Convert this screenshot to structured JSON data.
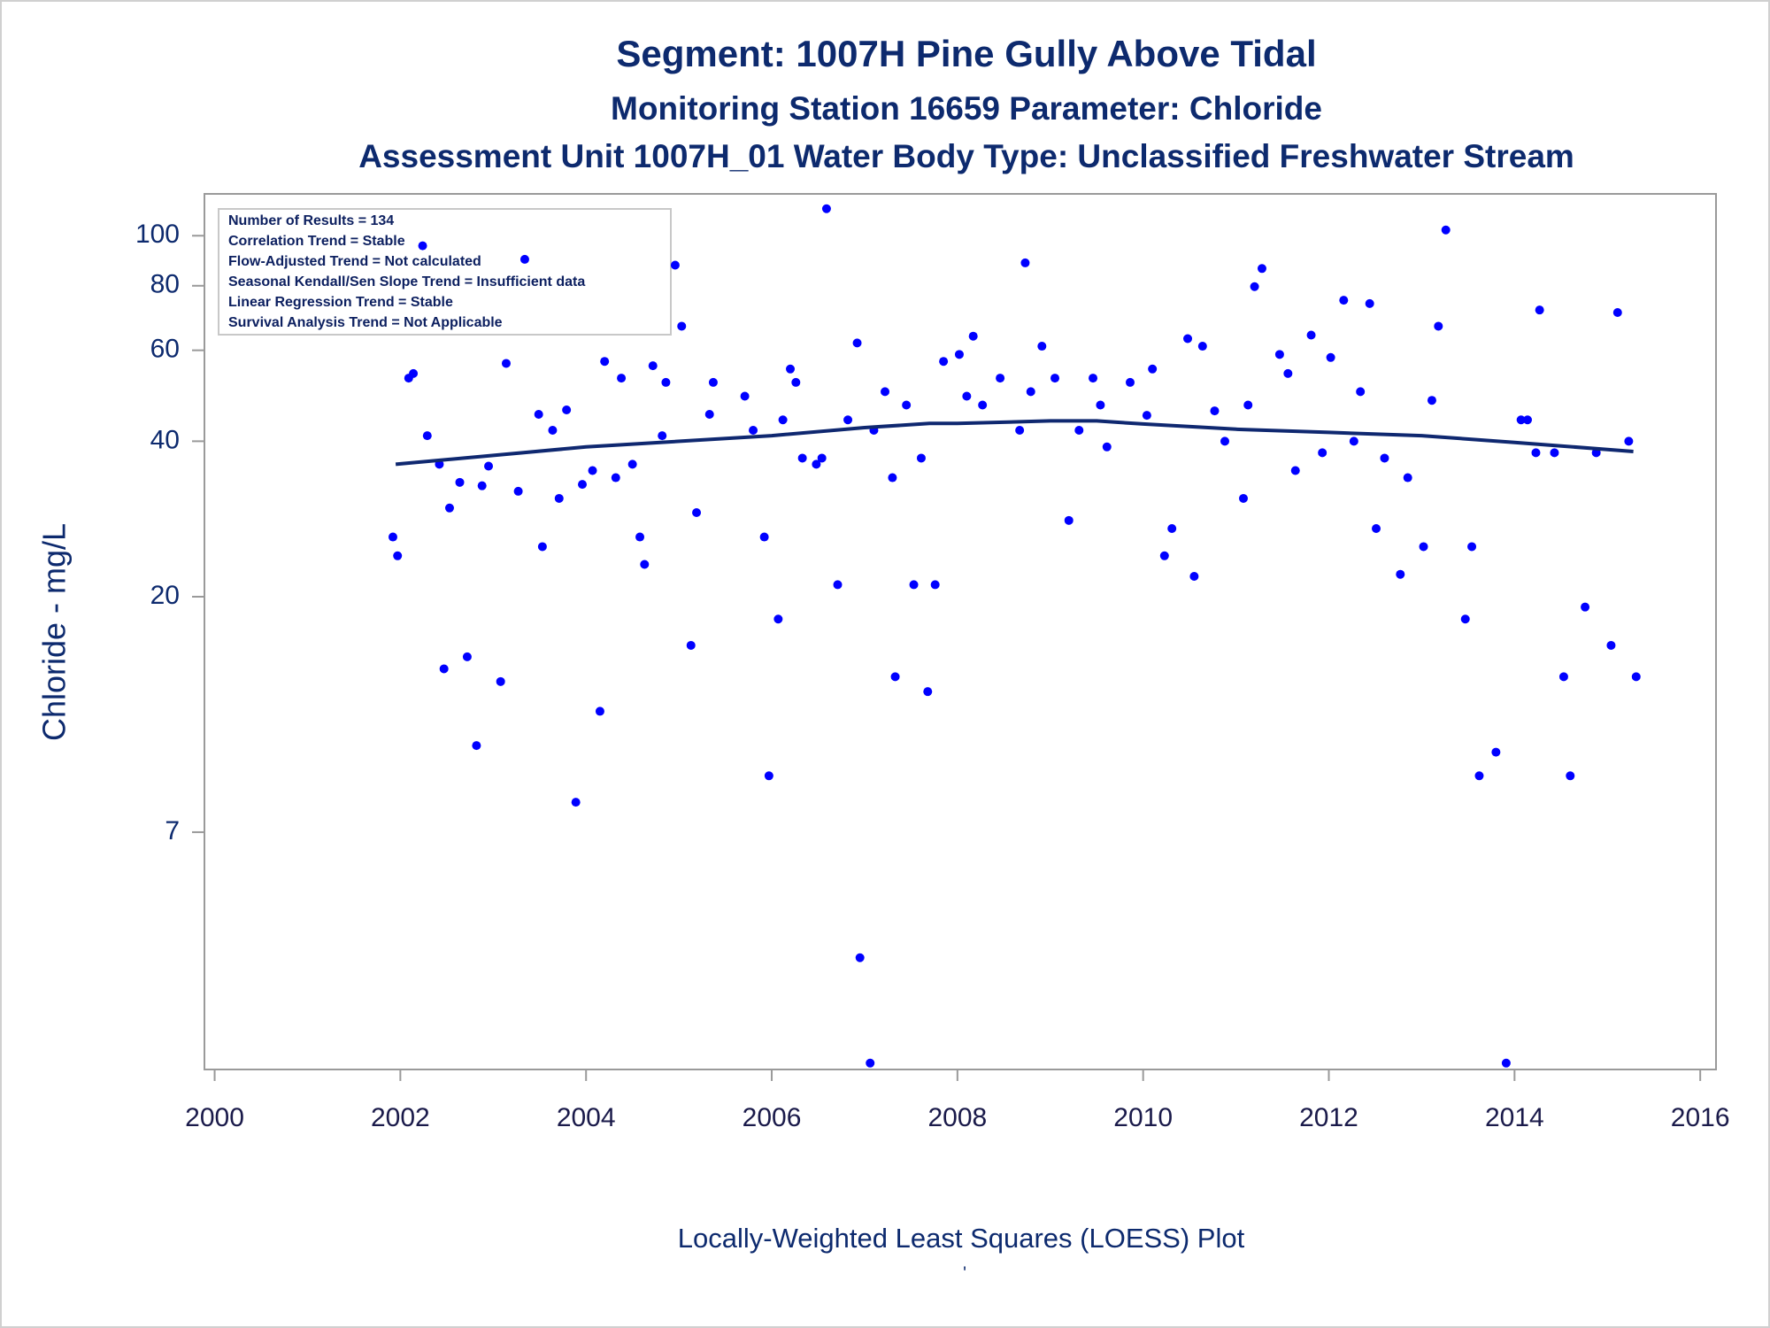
{
  "chart_data": {
    "type": "scatter",
    "title": "Segment: 1007H  Pine Gully Above Tidal",
    "subtitles": [
      "Monitoring Station 16659 Parameter: Chloride",
      "Assessment Unit 1007H_01   Water Body Type: Unclassified Freshwater Stream"
    ],
    "y_label": "Chloride - mg/L",
    "footnotes": [
      "Locally-Weighted Least Squares (LOESS) Plot",
      "'"
    ],
    "stats_box": [
      "Number of Results = 134",
      "Correlation Trend = Stable",
      "Flow-Adjusted Trend = Not calculated",
      "Seasonal Kendall/Sen Slope Trend = Insufficient data",
      "Linear Regression Trend = Stable",
      "Survival Analysis Trend = Not Applicable"
    ],
    "x": [
      2001.92,
      2001.97,
      2002.09,
      2002.14,
      2002.24,
      2002.29,
      2002.42,
      2002.47,
      2002.53,
      2002.64,
      2002.72,
      2002.82,
      2002.88,
      2002.95,
      2003.08,
      2003.14,
      2003.27,
      2003.34,
      2003.49,
      2003.53,
      2003.64,
      2003.71,
      2003.79,
      2003.89,
      2003.96,
      2004.07,
      2004.15,
      2004.2,
      2004.32,
      2004.38,
      2004.5,
      2004.58,
      2004.63,
      2004.72,
      2004.82,
      2004.86,
      2004.96,
      2005.03,
      2005.13,
      2005.19,
      2005.33,
      2005.37,
      2005.71,
      2005.8,
      2005.92,
      2005.97,
      2006.07,
      2006.12,
      2006.2,
      2006.26,
      2006.33,
      2006.48,
      2006.54,
      2006.59,
      2006.71,
      2006.82,
      2006.92,
      2006.95,
      2007.06,
      2007.1,
      2007.22,
      2007.3,
      2007.33,
      2007.45,
      2007.53,
      2007.61,
      2007.68,
      2007.76,
      2007.85,
      2008.02,
      2008.1,
      2008.17,
      2008.27,
      2008.46,
      2008.67,
      2008.73,
      2008.79,
      2008.91,
      2009.05,
      2009.2,
      2009.31,
      2009.46,
      2009.54,
      2009.61,
      2009.86,
      2010.04,
      2010.1,
      2010.23,
      2010.31,
      2010.48,
      2010.55,
      2010.64,
      2010.77,
      2010.88,
      2011.08,
      2011.13,
      2011.2,
      2011.28,
      2011.47,
      2011.56,
      2011.64,
      2011.81,
      2011.93,
      2012.02,
      2012.16,
      2012.27,
      2012.34,
      2012.44,
      2012.51,
      2012.6,
      2012.77,
      2012.85,
      2013.02,
      2013.11,
      2013.18,
      2013.26,
      2013.47,
      2013.54,
      2013.62,
      2013.8,
      2013.91,
      2014.07,
      2014.14,
      2014.23,
      2014.27,
      2014.43,
      2014.53,
      2014.6,
      2014.76,
      2014.88,
      2015.04,
      2015.11,
      2015.23,
      2015.31
    ],
    "values": [
      26.1,
      24.0,
      53.0,
      54.1,
      95.6,
      41.0,
      36.1,
      14.5,
      29.7,
      33.3,
      15.3,
      10.3,
      32.8,
      35.8,
      13.7,
      56.6,
      32.0,
      90.0,
      45.1,
      25.0,
      42.0,
      31.0,
      46.0,
      8.0,
      33.0,
      35.1,
      12.0,
      57.1,
      34.0,
      53.0,
      36.1,
      26.1,
      23.1,
      56.0,
      41.0,
      52.0,
      87.7,
      66.8,
      16.1,
      29.1,
      45.1,
      52.0,
      48.9,
      42.0,
      26.1,
      9.0,
      18.1,
      44.0,
      55.2,
      52.0,
      37.1,
      36.1,
      37.1,
      112.8,
      21.1,
      44.0,
      62.0,
      4.0,
      2.5,
      42.0,
      49.9,
      34.0,
      14.0,
      47.0,
      21.1,
      37.1,
      13.1,
      21.1,
      57.1,
      58.9,
      48.9,
      63.9,
      47.0,
      53.0,
      42.0,
      88.6,
      49.9,
      61.1,
      53.0,
      28.1,
      42.0,
      53.0,
      47.0,
      39.0,
      52.0,
      44.9,
      55.2,
      24.0,
      27.1,
      63.2,
      21.9,
      61.1,
      45.8,
      40.0,
      31.0,
      47.0,
      79.7,
      86.4,
      58.9,
      54.1,
      35.1,
      64.2,
      38.0,
      58.1,
      75.0,
      40.0,
      49.9,
      73.9,
      27.1,
      37.1,
      22.1,
      34.0,
      25.0,
      48.0,
      66.8,
      102.6,
      18.1,
      25.0,
      9.0,
      10.0,
      2.5,
      44.0,
      44.0,
      38.0,
      71.8,
      38.0,
      14.0,
      9.0,
      19.1,
      38.0,
      16.1,
      71.0,
      40.0,
      14.0
    ],
    "color": "#0000ff",
    "fit": {
      "type": "line",
      "color": "#0f2870",
      "x": [
        2001.95,
        2004.0,
        2006.0,
        2007.0,
        2007.7,
        2008.0,
        2009.0,
        2009.5,
        2010.0,
        2011.0,
        2012.0,
        2013.0,
        2014.0,
        2015.28
      ],
      "values": [
        36.1,
        39.0,
        41.0,
        42.5,
        43.3,
        43.3,
        43.8,
        43.8,
        43.2,
        42.2,
        41.6,
        41.0,
        39.8,
        38.2
      ]
    },
    "xlim": [
      1999.89,
      2016.17
    ],
    "xticks": [
      2000,
      2002,
      2004,
      2006,
      2008,
      2010,
      2012,
      2014,
      2016
    ],
    "ylim": [
      2.43,
      120.5
    ],
    "yticks": [
      7,
      20,
      40,
      60,
      80,
      100
    ],
    "log_y": true
  }
}
